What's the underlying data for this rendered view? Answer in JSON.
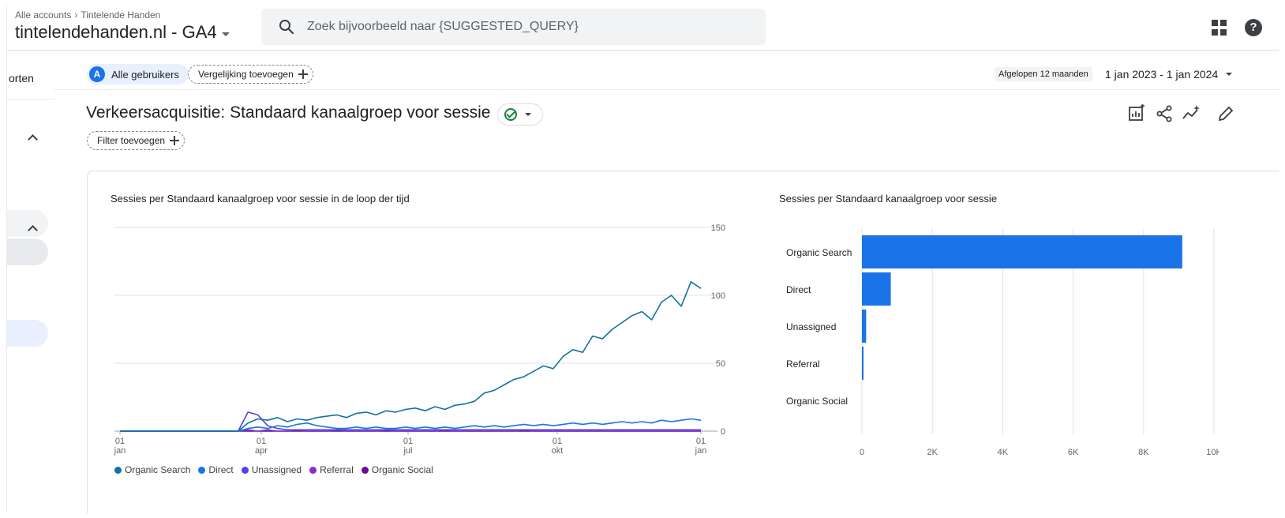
{
  "header": {
    "breadcrumb": [
      "Alle accounts",
      "Tintelende Handen"
    ],
    "property_name": "tintelendehanden.nl - GA4",
    "search_placeholder": "Zoek bijvoorbeeld naar {SUGGESTED_QUERY}"
  },
  "leftnav": {
    "partial_label": "orten"
  },
  "chips": {
    "user_segment_letter": "A",
    "user_segment": "Alle gebruikers",
    "add_comparison": "Vergelijking toevoegen",
    "add_filter": "Filter toevoegen"
  },
  "date": {
    "preset": "Afgelopen 12 maanden",
    "range": "1 jan 2023 - 1 jan 2024"
  },
  "report": {
    "title": "Verkeersacquisitie: Standaard kanaalgroep voor sessie"
  },
  "colors": {
    "organic_search": "#12739f",
    "direct": "#1a73e8",
    "unassigned": "#4f44e0",
    "referral": "#8430ce",
    "organic_social": "#6a0d91",
    "bar": "#1a73e8"
  },
  "chart_data": [
    {
      "type": "line",
      "title": "Sessies per Standaard kanaalgroep voor sessie in de loop der tijd",
      "x_tick_labels": [
        [
          "01",
          "jan"
        ],
        [
          "01",
          "apr"
        ],
        [
          "01",
          "jul"
        ],
        [
          "01",
          "okt"
        ],
        [
          "01",
          "jan"
        ]
      ],
      "y_ticks": [
        0,
        50,
        100,
        150
      ],
      "ylim": [
        0,
        150
      ],
      "x_range": [
        "2023-01-01",
        "2024-01-01"
      ],
      "y_axis_side": "right",
      "grid": true,
      "legend_position": "bottom",
      "series": [
        {
          "name": "Organic Search",
          "color_key": "organic_search",
          "weekly_values": [
            0,
            0,
            0,
            0,
            0,
            0,
            0,
            0,
            0,
            0,
            0,
            0,
            0,
            6,
            9,
            8,
            10,
            7,
            9,
            8,
            10,
            11,
            12,
            10,
            13,
            14,
            12,
            15,
            14,
            16,
            17,
            15,
            18,
            16,
            19,
            20,
            22,
            28,
            30,
            34,
            38,
            40,
            44,
            48,
            46,
            55,
            60,
            58,
            70,
            68,
            75,
            80,
            85,
            88,
            82,
            95,
            100,
            92,
            110,
            105
          ]
        },
        {
          "name": "Direct",
          "color_key": "direct",
          "weekly_values": [
            0,
            0,
            0,
            0,
            0,
            0,
            0,
            0,
            0,
            0,
            0,
            0,
            0,
            2,
            3,
            2,
            4,
            3,
            5,
            6,
            4,
            3,
            2,
            2,
            3,
            2,
            3,
            2,
            2,
            3,
            2,
            3,
            2,
            3,
            2,
            3,
            4,
            3,
            4,
            3,
            4,
            5,
            4,
            5,
            4,
            5,
            6,
            5,
            6,
            5,
            6,
            7,
            6,
            7,
            6,
            8,
            7,
            8,
            9,
            8
          ]
        },
        {
          "name": "Unassigned",
          "color_key": "unassigned",
          "weekly_values": [
            0,
            0,
            0,
            0,
            0,
            0,
            0,
            0,
            0,
            0,
            0,
            0,
            0,
            14,
            12,
            4,
            2,
            1,
            1,
            1,
            1,
            1,
            1,
            1,
            1,
            1,
            1,
            1,
            1,
            1,
            1,
            1,
            1,
            1,
            1,
            1,
            1,
            1,
            1,
            1,
            1,
            1,
            1,
            1,
            1,
            1,
            1,
            1,
            1,
            1,
            1,
            1,
            1,
            1,
            1,
            1,
            1,
            1,
            1,
            1
          ]
        },
        {
          "name": "Referral",
          "color_key": "referral",
          "weekly_values": [
            0,
            0,
            0,
            0,
            0,
            0,
            0,
            0,
            0,
            0,
            0,
            0,
            0,
            1,
            0,
            1,
            0,
            0,
            1,
            0,
            0,
            0,
            1,
            0,
            0,
            0,
            0,
            1,
            0,
            0,
            0,
            0,
            0,
            1,
            0,
            0,
            0,
            0,
            0,
            0,
            0,
            1,
            0,
            0,
            0,
            0,
            0,
            0,
            0,
            0,
            0,
            0,
            0,
            0,
            0,
            0,
            0,
            0,
            0,
            0
          ]
        },
        {
          "name": "Organic Social",
          "color_key": "organic_social",
          "weekly_values": [
            0,
            0,
            0,
            0,
            0,
            0,
            0,
            0,
            0,
            0,
            0,
            0,
            0,
            0,
            0,
            0,
            0,
            0,
            0,
            0,
            0,
            0,
            0,
            0,
            0,
            0,
            0,
            0,
            0,
            0,
            0,
            0,
            0,
            0,
            0,
            0,
            0,
            0,
            0,
            0,
            0,
            0,
            0,
            0,
            0,
            0,
            0,
            0,
            0,
            0,
            0,
            0,
            0,
            0,
            0,
            0,
            0,
            0,
            0,
            0
          ]
        }
      ]
    },
    {
      "type": "bar",
      "orientation": "horizontal",
      "title": "Sessies per Standaard kanaalgroep voor sessie",
      "categories": [
        "Organic Search",
        "Direct",
        "Unassigned",
        "Referral",
        "Organic Social"
      ],
      "values": [
        9100,
        820,
        120,
        40,
        0
      ],
      "x_ticks": [
        0,
        2000,
        4000,
        6000,
        8000,
        10000
      ],
      "x_tick_labels": [
        "0",
        "2K",
        "4K",
        "6K",
        "8K",
        "10K"
      ],
      "xlim": [
        0,
        10000
      ],
      "grid": true
    }
  ]
}
